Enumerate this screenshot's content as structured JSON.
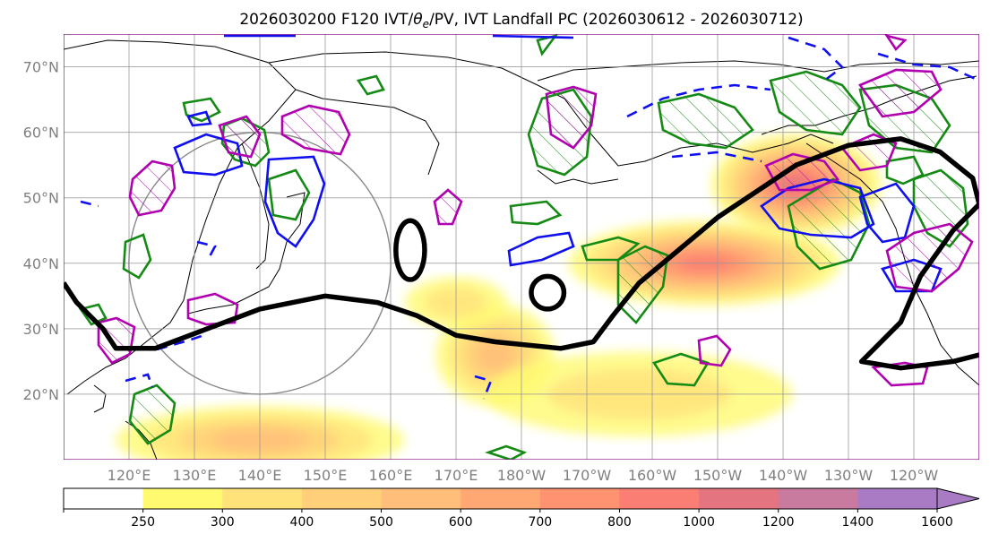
{
  "chart_data": {
    "type": "map",
    "title": "2026030200 F120 IVT/θe/PV, IVT Landfall PC (2026030612 - 2026030712)",
    "title_parts": {
      "prefix": "2026030200 F120 IVT/",
      "theta": "θ",
      "theta_sub": "e",
      "suffix": "/PV, IVT Landfall PC (2026030612 - 2026030712)"
    },
    "xlim": [
      110,
      250
    ],
    "ylim": [
      10,
      75
    ],
    "lon_ticks": [
      {
        "value": 120,
        "label": "120°E"
      },
      {
        "value": 130,
        "label": "130°E"
      },
      {
        "value": 140,
        "label": "140°E"
      },
      {
        "value": 150,
        "label": "150°E"
      },
      {
        "value": 160,
        "label": "160°E"
      },
      {
        "value": 170,
        "label": "170°E"
      },
      {
        "value": 180,
        "label": "180°W"
      },
      {
        "value": 190,
        "label": "170°W"
      },
      {
        "value": 200,
        "label": "160°W"
      },
      {
        "value": 210,
        "label": "150°W"
      },
      {
        "value": 220,
        "label": "140°W"
      },
      {
        "value": 230,
        "label": "130°W"
      },
      {
        "value": 240,
        "label": "120°W"
      }
    ],
    "lat_ticks": [
      {
        "value": 20,
        "label": "20°N"
      },
      {
        "value": 30,
        "label": "30°N"
      },
      {
        "value": 40,
        "label": "40°N"
      },
      {
        "value": 50,
        "label": "50°N"
      },
      {
        "value": 60,
        "label": "60°N"
      },
      {
        "value": 70,
        "label": "70°N"
      }
    ],
    "grid": true,
    "colorbar": {
      "levels": [
        250,
        300,
        400,
        500,
        600,
        700,
        800,
        1000,
        1200,
        1400,
        1600
      ],
      "colors": [
        "#ffffff",
        "#fffa70",
        "#ffe27a",
        "#ffd079",
        "#ffbe79",
        "#ffa873",
        "#ff9270",
        "#fa7e73",
        "#e47580",
        "#c97b9f",
        "#a97bc4"
      ],
      "extend": "max"
    },
    "ivt_blobs": [
      {
        "lon": 140,
        "lat": 13,
        "level": 500,
        "rx": 17,
        "ry": 4
      },
      {
        "lon": 176,
        "lat": 26,
        "level": 500,
        "rx": 7,
        "ry": 6
      },
      {
        "lon": 208,
        "lat": 40,
        "level": 800,
        "rx": 16,
        "ry": 5
      },
      {
        "lon": 222,
        "lat": 52,
        "level": 1000,
        "rx": 10,
        "ry": 6
      },
      {
        "lon": 198,
        "lat": 20,
        "level": 300,
        "rx": 18,
        "ry": 5
      },
      {
        "lon": 170,
        "lat": 34,
        "level": 300,
        "rx": 6,
        "ry": 3
      }
    ],
    "landfall_contour": [
      [
        110,
        37
      ],
      [
        112,
        34
      ],
      [
        116,
        30
      ],
      [
        118,
        27
      ],
      [
        124,
        27
      ],
      [
        132,
        30
      ],
      [
        140,
        33
      ],
      [
        150,
        35
      ],
      [
        158,
        34
      ],
      [
        164,
        32
      ],
      [
        170,
        29
      ],
      [
        176,
        28
      ],
      [
        186,
        27
      ],
      [
        191,
        28
      ],
      [
        194,
        32
      ],
      [
        198,
        37
      ],
      [
        204,
        42
      ],
      [
        210,
        47
      ],
      [
        216,
        51
      ],
      [
        222,
        55
      ],
      [
        230,
        58
      ],
      [
        238,
        59
      ],
      [
        244,
        57
      ],
      [
        249,
        53
      ],
      [
        250,
        49
      ],
      [
        246,
        45
      ],
      [
        241,
        38
      ],
      [
        238,
        31
      ],
      [
        234,
        27
      ],
      [
        232,
        25
      ],
      [
        238,
        24
      ],
      [
        246,
        25
      ],
      [
        250,
        26
      ]
    ],
    "small_rings": [
      {
        "lon": 163,
        "lat": 42,
        "rlon": 2.2,
        "rlat": 4.5
      },
      {
        "lon": 184,
        "lat": 35.5,
        "rlon": 2.5,
        "rlat": 2.5
      }
    ],
    "range_circle": {
      "lon": 140,
      "lat": 40,
      "radius_deg_lat": 20
    }
  }
}
